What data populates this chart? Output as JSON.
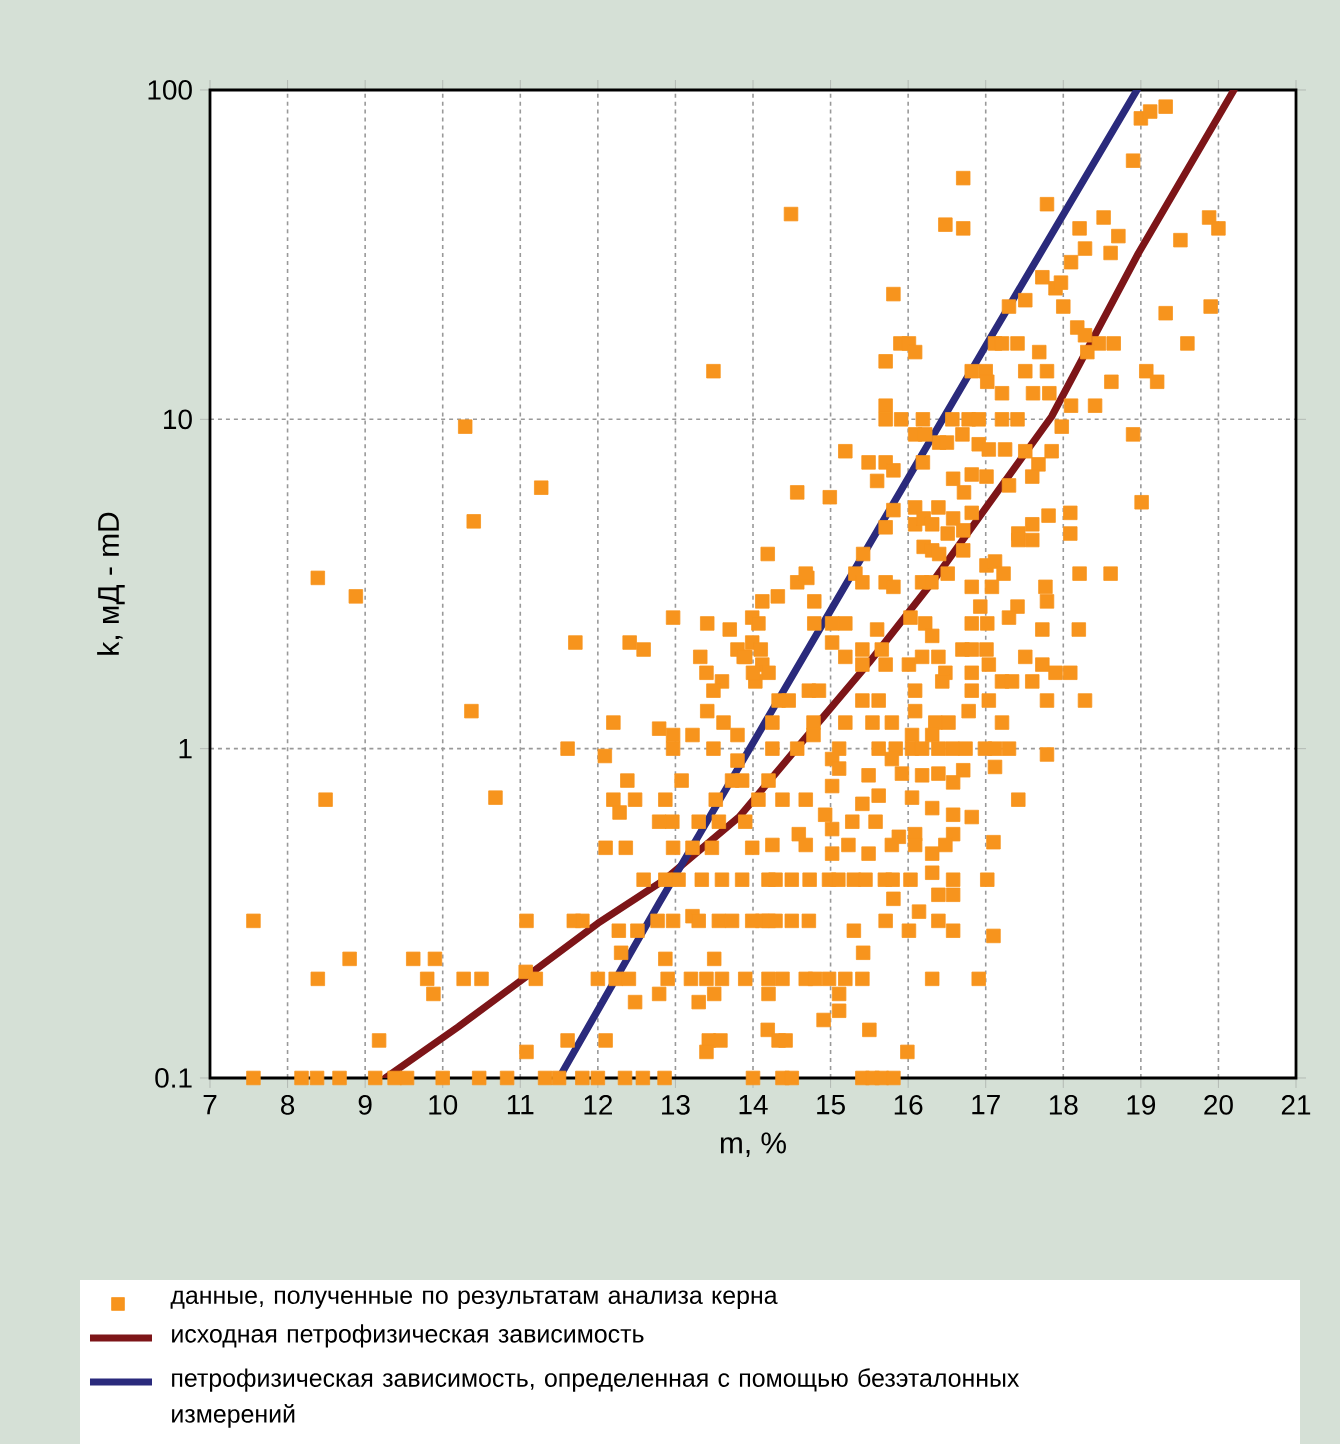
{
  "chart_data": {
    "type": "scatter",
    "xlabel": "m, %",
    "ylabel": "k, мД - mD",
    "xlim": [
      7,
      21
    ],
    "ylim": [
      0.1,
      100
    ],
    "xticks": [
      7,
      8,
      9,
      10,
      11,
      12,
      13,
      14,
      15,
      16,
      17,
      18,
      19,
      20,
      21
    ],
    "yticks": [
      0.1,
      1,
      10,
      100
    ],
    "log": "y",
    "grid": true,
    "legend": "bottom",
    "series": [
      {
        "name": "данные, полученные по результатам анализа керна",
        "marker": "square",
        "color": "#f7941d",
        "x": [
          10.29,
          10.4,
          11.27,
          13.49,
          8.39,
          8.88,
          10.37,
          11.61,
          8.49,
          10.68,
          11.71,
          12.41,
          12.59,
          12.97,
          7.56,
          7.56,
          8.8,
          8.39,
          9.18,
          8.18,
          8.38,
          8.67,
          9.13,
          9.38,
          9.54,
          10.0,
          10.47,
          10.83,
          11.32,
          11.5,
          11.8,
          12.0,
          12.35,
          12.58,
          12.86,
          11.08,
          11.69,
          11.8,
          9.62,
          9.9,
          9.8,
          9.88,
          10.27,
          10.5,
          11.07,
          11.2,
          11.08,
          11.61,
          12.1,
          12.3,
          12.48,
          12.0,
          12.23,
          12.4,
          12.27,
          12.51,
          12.1,
          12.36,
          12.59,
          12.09,
          12.38,
          12.2,
          12.48,
          12.28,
          12.2,
          12.79,
          12.97,
          12.97,
          13.22,
          12.87,
          12.79,
          12.96,
          13.3,
          13.56,
          13.9,
          12.97,
          13.22,
          13.47,
          13.99,
          12.87,
          13.04,
          13.34,
          13.6,
          13.86,
          13.22,
          12.77,
          12.97,
          13.3,
          13.56,
          13.73,
          13.99,
          12.87,
          13.5,
          12.79,
          13.3,
          13.5,
          12.9,
          13.2,
          13.4,
          13.6,
          13.9,
          13.43,
          13.58,
          13.4,
          13.41,
          13.7,
          13.99,
          13.32,
          13.8,
          13.88,
          13.4,
          13.6,
          13.49,
          14.03,
          13.41,
          13.62,
          13.8,
          13.49,
          13.8,
          13.86,
          13.73,
          13.08,
          13.52,
          16.71,
          14.49,
          16.48,
          16.71,
          17.79,
          19.0,
          19.12,
          19.32,
          18.9,
          18.21,
          18.52,
          18.71,
          18.28,
          18.61,
          18.1,
          19.51,
          19.88,
          20.0,
          17.73,
          17.9,
          17.97,
          18.0,
          17.51,
          17.3,
          15.81,
          19.32,
          19.9,
          19.6,
          18.18,
          18.28,
          18.46,
          18.65,
          18.31,
          17.12,
          17.21,
          17.41,
          17.69,
          15.71,
          15.9,
          16.01,
          16.09,
          16.82,
          17.0,
          17.51,
          17.79,
          17.02,
          17.21,
          17.61,
          17.82,
          19.07,
          19.21,
          18.62,
          18.41,
          18.1,
          17.98,
          18.9,
          15.71,
          15.71,
          15.91,
          16.19,
          16.57,
          16.78,
          16.91,
          17.21,
          17.41,
          15.19,
          15.49,
          15.71,
          15.81,
          15.6,
          16.19,
          16.09,
          16.22,
          16.4,
          16.5,
          16.7,
          16.91,
          17.04,
          17.25,
          17.51,
          17.68,
          17.85,
          16.82,
          17.01,
          17.3,
          17.6,
          14.57,
          14.99,
          14.19,
          15.81,
          16.09,
          16.39,
          16.58,
          16.72,
          16.82,
          15.71,
          16.09,
          16.2,
          16.31,
          16.58,
          16.71,
          17.42,
          17.6,
          17.81,
          18.09,
          19.01,
          18.09,
          15.42,
          16.2,
          16.31,
          16.4,
          16.51,
          16.71,
          17.42,
          17.6,
          14.7,
          15.32,
          15.71,
          16.51,
          17.01,
          17.12,
          17.23,
          18.21,
          18.61,
          17.77,
          17.79,
          17.41,
          17.3,
          17.73,
          18.2,
          16.82,
          17.02,
          15.02,
          14.79,
          15.19,
          15.6,
          16.03,
          16.22,
          16.31,
          14.57,
          14.68,
          14.32,
          14.12,
          14.07,
          14.79,
          15.41,
          15.81,
          16.18,
          16.3,
          16.82,
          17.08,
          16.93,
          13.99,
          14.1,
          14.12,
          14.0,
          13.9,
          14.2,
          14.33,
          14.46,
          14.72,
          14.85,
          15.02,
          15.19,
          15.41,
          15.41,
          15.66,
          15.71,
          16.01,
          16.18,
          16.39,
          16.09,
          16.48,
          16.44,
          16.7,
          16.82,
          17.01,
          16.82,
          17.04,
          16.82,
          17.21,
          17.34,
          17.6,
          17.51,
          17.73,
          17.9,
          18.09,
          17.79,
          18.28,
          16.78,
          17.04,
          17.21,
          15.19,
          15.41,
          15.62,
          15.79,
          15.54,
          16.09,
          16.35,
          16.31,
          16.52,
          16.05,
          14.25,
          14.57,
          14.25,
          14.78,
          14.78,
          15.11,
          15.62,
          15.84,
          16.05,
          16.18,
          16.39,
          16.57,
          16.74,
          16.99,
          17.12,
          17.3,
          17.79,
          17.42,
          15.02,
          15.02,
          15.11,
          15.49,
          15.79,
          15.92,
          16.18,
          16.39,
          16.58,
          16.71,
          17.12,
          14.2,
          14.07,
          14.38,
          14.68,
          14.93,
          15.41,
          15.62,
          16.05,
          16.31,
          16.58,
          16.82,
          15.02,
          15.28,
          15.58,
          15.88,
          16.09,
          16.58,
          14.25,
          14.59,
          14.68,
          15.02,
          15.23,
          15.49,
          15.79,
          16.09,
          16.31,
          16.48,
          17.1,
          14.2,
          14.29,
          14.5,
          14.73,
          14.98,
          15.1,
          15.3,
          15.45,
          15.7,
          15.8,
          16.03,
          16.58,
          17.02,
          16.31,
          15.81,
          16.39,
          16.58,
          14.12,
          14.2,
          14.29,
          14.5,
          14.72,
          15.3,
          15.71,
          16.01,
          16.14,
          16.39,
          16.58,
          17.1,
          15.42,
          14.2,
          14.38,
          14.68,
          14.8,
          14.98,
          15.19,
          15.41,
          16.31,
          16.91,
          14.2,
          15.11,
          15.11,
          14.91,
          14.19,
          14.33,
          14.42,
          15.5,
          15.99,
          14.0,
          14.38,
          14.5,
          15.41,
          15.54,
          15.66,
          15.81
        ],
        "values": [
          9.5,
          4.9,
          6.2,
          14,
          3.3,
          2.9,
          1.3,
          1.0,
          0.7,
          0.71,
          2.1,
          2.1,
          2.0,
          2.5,
          0.3,
          0.1,
          0.23,
          0.2,
          0.13,
          0.1,
          0.1,
          0.1,
          0.1,
          0.1,
          0.1,
          0.1,
          0.1,
          0.1,
          0.1,
          0.1,
          0.1,
          0.1,
          0.1,
          0.1,
          0.1,
          0.3,
          0.3,
          0.3,
          0.23,
          0.23,
          0.2,
          0.18,
          0.2,
          0.2,
          0.21,
          0.2,
          0.12,
          0.13,
          0.13,
          0.24,
          0.17,
          0.2,
          0.2,
          0.2,
          0.28,
          0.28,
          0.5,
          0.5,
          0.4,
          0.95,
          0.8,
          0.7,
          0.7,
          0.64,
          1.2,
          1.15,
          1.1,
          1.0,
          1.1,
          0.7,
          0.6,
          0.6,
          0.6,
          0.6,
          0.6,
          0.5,
          0.5,
          0.5,
          0.5,
          0.4,
          0.4,
          0.4,
          0.4,
          0.4,
          0.31,
          0.3,
          0.3,
          0.3,
          0.3,
          0.3,
          0.3,
          0.23,
          0.23,
          0.18,
          0.17,
          0.18,
          0.2,
          0.2,
          0.2,
          0.2,
          0.2,
          0.13,
          0.13,
          0.12,
          2.4,
          2.3,
          2.5,
          1.9,
          2.0,
          1.9,
          1.7,
          1.6,
          1.5,
          1.6,
          1.3,
          1.2,
          1.1,
          1.0,
          0.92,
          0.8,
          0.8,
          0.8,
          0.7,
          54,
          42,
          39,
          38,
          45,
          82,
          86,
          89,
          61,
          38,
          41,
          36,
          33,
          32,
          30,
          35,
          41,
          38,
          27,
          25,
          26,
          22,
          23,
          22,
          24,
          21,
          22,
          17,
          19,
          18,
          17,
          17,
          16,
          17,
          17,
          17,
          16,
          15,
          17,
          17,
          16,
          14,
          14,
          14,
          14,
          13,
          12,
          12,
          12,
          14,
          13,
          13,
          11,
          11,
          9.5,
          9,
          11,
          10,
          10,
          10,
          10,
          10,
          10,
          10,
          10,
          8,
          7.4,
          7.4,
          7.0,
          6.5,
          7.4,
          9,
          9,
          8.5,
          8.5,
          9,
          8.4,
          8.1,
          8.1,
          8,
          7.3,
          8,
          6.8,
          6.7,
          6.3,
          6.7,
          6,
          5.8,
          3.9,
          5.3,
          5.4,
          5.4,
          6.6,
          6,
          5.2,
          4.7,
          4.8,
          5,
          4.8,
          5,
          4.6,
          4.5,
          4.8,
          5.1,
          5.2,
          5.6,
          4.5,
          3.9,
          4.1,
          4.0,
          3.9,
          4.5,
          4.0,
          4.3,
          4.3,
          3.3,
          3.4,
          3.2,
          3.4,
          3.6,
          3.7,
          3.4,
          3.4,
          3.4,
          3.1,
          2.8,
          2.7,
          2.5,
          2.3,
          2.3,
          2.4,
          2.4,
          2.4,
          2.4,
          2.4,
          2.3,
          2.5,
          2.4,
          2.2,
          3.2,
          3.4,
          2.9,
          2.8,
          2.4,
          2.8,
          3.2,
          3.1,
          3.2,
          3.2,
          3.1,
          3.1,
          2.7,
          2.1,
          2.0,
          1.8,
          1.7,
          1.9,
          1.7,
          1.4,
          1.4,
          1.5,
          1.5,
          2.1,
          1.9,
          2.0,
          1.8,
          2.0,
          1.8,
          1.8,
          1.9,
          1.9,
          1.5,
          1.7,
          1.6,
          2.0,
          2.0,
          2.0,
          1.7,
          1.8,
          1.5,
          1.6,
          1.6,
          1.6,
          1.9,
          1.8,
          1.7,
          1.7,
          1.4,
          1.4,
          1.3,
          1.4,
          1.2,
          1.2,
          1.4,
          1.4,
          1.2,
          1.2,
          1.3,
          1.2,
          1.1,
          1.2,
          1.1,
          1.2,
          1.0,
          1.0,
          1.2,
          1.1,
          1,
          1,
          1,
          1,
          1,
          1,
          1,
          1,
          1,
          1,
          1,
          0.96,
          0.7,
          0.93,
          0.77,
          0.87,
          0.83,
          0.93,
          0.84,
          0.83,
          0.84,
          0.79,
          0.86,
          0.88,
          0.8,
          0.7,
          0.7,
          0.7,
          0.63,
          0.68,
          0.72,
          0.71,
          0.66,
          0.63,
          0.62,
          0.57,
          0.6,
          0.6,
          0.54,
          0.55,
          0.55,
          0.51,
          0.55,
          0.51,
          0.48,
          0.51,
          0.48,
          0.51,
          0.51,
          0.48,
          0.51,
          0.52,
          0.4,
          0.4,
          0.4,
          0.4,
          0.4,
          0.4,
          0.4,
          0.4,
          0.4,
          0.4,
          0.4,
          0.4,
          0.4,
          0.42,
          0.35,
          0.36,
          0.36,
          0.3,
          0.3,
          0.3,
          0.3,
          0.3,
          0.28,
          0.3,
          0.28,
          0.32,
          0.3,
          0.28,
          0.27,
          0.24,
          0.2,
          0.2,
          0.2,
          0.2,
          0.2,
          0.2,
          0.2,
          0.2,
          0.2,
          0.18,
          0.18,
          0.16,
          0.15,
          0.14,
          0.13,
          0.13,
          0.14,
          0.12,
          0.1,
          0.1,
          0.1,
          0.1,
          0.1,
          0.1,
          0.1
        ]
      },
      {
        "name": "исходная петрофизическая зависимость",
        "type": "line",
        "marker": "none",
        "color": "#7d1518",
        "x": [
          9.26,
          10.2,
          11.16,
          12.0,
          12.86,
          13.82,
          14.56,
          15.5,
          16.31,
          17.85,
          18.97,
          20.2
        ],
        "values": [
          0.1,
          0.143,
          0.21,
          0.295,
          0.4,
          0.62,
          1.0,
          1.83,
          3.2,
          10.2,
          32,
          100
        ]
      },
      {
        "name": "петрофизическая зависимость, определенная с помощью безэталонных измерений",
        "type": "line",
        "marker": "none",
        "color": "#2a2a7c",
        "x": [
          11.5,
          12.79,
          14.07,
          15.23,
          17.08,
          18.95
        ],
        "values": [
          0.1,
          0.34,
          1.11,
          3.25,
          18,
          100
        ]
      }
    ]
  }
}
